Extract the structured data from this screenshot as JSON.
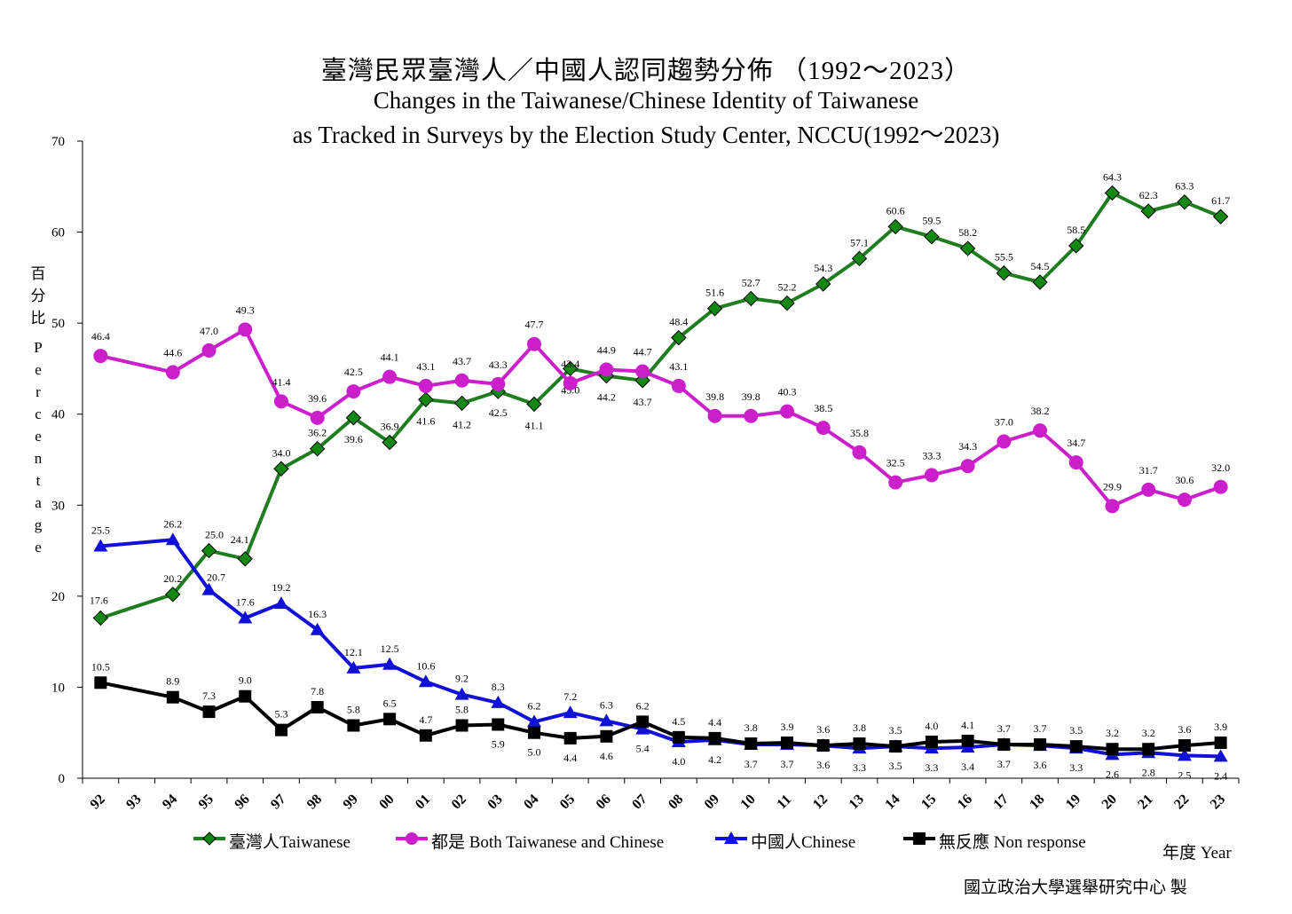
{
  "title": {
    "zh": "臺灣民眾臺灣人／中國人認同趨勢分佈 （1992～2023）",
    "en_line1": "Changes in the Taiwanese/Chinese Identity of Taiwanese",
    "en_line2": "as Tracked in Surveys by the Election Study Center, NCCU(1992～2023)"
  },
  "y_axis": {
    "label_zh": [
      "百",
      "分",
      "比"
    ],
    "label_en": [
      "P",
      "e",
      "r",
      "c",
      "e",
      "n",
      "t",
      "a",
      "g",
      "e"
    ],
    "ticks": [
      0,
      10,
      20,
      30,
      40,
      50,
      60,
      70
    ]
  },
  "x_axis": {
    "label": "年度 Year"
  },
  "credit": "國立政治大學選舉研究中心 製",
  "colors": {
    "taiwanese": "#1e7d1e",
    "taiwanese_marker": "#118811",
    "both": "#cc1fcc",
    "chinese": "#1010d8",
    "nonresponse": "#000000"
  },
  "chart_data": {
    "type": "line",
    "title": "臺灣民眾臺灣人／中國人認同趨勢分佈 （1992～2023）",
    "xlabel": "年度 Year",
    "ylabel": "百分比 Percentage",
    "ylim": [
      0,
      70
    ],
    "x": [
      "92",
      "93",
      "94",
      "95",
      "96",
      "97",
      "98",
      "99",
      "00",
      "01",
      "02",
      "03",
      "04",
      "05",
      "06",
      "07",
      "08",
      "09",
      "10",
      "11",
      "12",
      "13",
      "14",
      "15",
      "16",
      "17",
      "18",
      "19",
      "20",
      "21",
      "22",
      "23"
    ],
    "legend_position": "bottom",
    "series": [
      {
        "name": "臺灣人Taiwanese",
        "key": "taiwanese",
        "marker": "diamond",
        "values": [
          17.6,
          null,
          20.2,
          25.0,
          24.1,
          34.0,
          36.2,
          39.6,
          36.9,
          41.6,
          41.2,
          42.5,
          41.1,
          45.0,
          44.2,
          43.7,
          48.4,
          51.6,
          52.7,
          52.2,
          54.3,
          57.1,
          60.6,
          59.5,
          58.2,
          55.5,
          54.5,
          58.5,
          64.3,
          62.3,
          63.3,
          61.7
        ],
        "labels": [
          "17.6",
          "",
          "20.2",
          "25.0",
          "24.1",
          "34.0",
          "36.2",
          "39.6",
          "36.9",
          "41.6",
          "41.2",
          "42.5",
          "41.1",
          "45.0",
          "44.2",
          "43.7",
          "48.4",
          "51.6",
          "52.7",
          "52.2",
          "54.3",
          "57.1",
          "60.6",
          "59.5",
          "58.2",
          "55.5",
          "54.5",
          "58.5",
          "64.3",
          "62.3",
          "63.3",
          "61.7"
        ]
      },
      {
        "name": "都是 Both Taiwanese and Chinese",
        "key": "both",
        "marker": "circle",
        "values": [
          46.4,
          null,
          44.6,
          47.0,
          49.3,
          41.4,
          39.6,
          42.5,
          44.1,
          43.1,
          43.7,
          43.3,
          47.7,
          43.4,
          44.9,
          44.7,
          43.1,
          39.8,
          39.8,
          40.3,
          38.5,
          35.8,
          32.5,
          33.3,
          34.3,
          37.0,
          38.2,
          34.7,
          29.9,
          31.7,
          30.6,
          32.0
        ],
        "labels": [
          "46.4",
          "",
          "44.6",
          "47.0",
          "49.3",
          "41.4",
          "39.6",
          "42.5",
          "44.1",
          "43.1",
          "43.7",
          "43.3",
          "47.7",
          "43.4",
          "44.9",
          "44.7",
          "43.1",
          "39.8",
          "39.8",
          "40.3",
          "38.5",
          "35.8",
          "32.5",
          "33.3",
          "34.3",
          "37.0",
          "38.2",
          "34.7",
          "29.9",
          "31.7",
          "30.6",
          "32.0"
        ]
      },
      {
        "name": "中國人Chinese",
        "key": "chinese",
        "marker": "triangle",
        "values": [
          25.5,
          null,
          26.2,
          20.7,
          17.6,
          19.2,
          16.3,
          12.1,
          12.5,
          10.6,
          9.2,
          8.3,
          6.2,
          7.2,
          6.3,
          5.4,
          4.0,
          4.2,
          3.7,
          3.7,
          3.6,
          3.3,
          3.5,
          3.3,
          3.4,
          3.7,
          3.6,
          3.3,
          2.6,
          2.8,
          2.5,
          2.4
        ],
        "labels": [
          "25.5",
          "",
          "26.2",
          "20.7",
          "17.6",
          "19.2",
          "16.3",
          "12.1",
          "12.5",
          "10.6",
          "9.2",
          "8.3",
          "6.2",
          "7.2",
          "6.3",
          "5.4",
          "4.0",
          "4.2",
          "3.7",
          "3.7",
          "3.6",
          "3.3",
          "3.5",
          "3.3",
          "3.4",
          "3.7",
          "3.6",
          "3.3",
          "2.6",
          "2.8",
          "2.5",
          "2.4"
        ]
      },
      {
        "name": "無反應 Non response",
        "key": "nonresponse",
        "marker": "square",
        "values": [
          10.5,
          null,
          8.9,
          7.3,
          9.0,
          5.3,
          7.8,
          5.8,
          6.5,
          4.7,
          5.8,
          5.9,
          5.0,
          4.4,
          4.6,
          6.2,
          4.5,
          4.4,
          3.8,
          3.9,
          3.6,
          3.8,
          3.5,
          4.0,
          4.1,
          3.7,
          3.7,
          3.5,
          3.2,
          3.2,
          3.6,
          3.9
        ],
        "labels": [
          "10.5",
          "",
          "8.9",
          "7.3",
          "9.0",
          "5.3",
          "7.8",
          "5.8",
          "6.5",
          "4.7",
          "5.8",
          "5.9",
          "5.0",
          "4.4",
          "4.6",
          "6.2",
          "4.5",
          "4.4",
          "3.8",
          "3.9",
          "3.6",
          "3.8",
          "3.5",
          "4.0",
          "4.1",
          "3.7",
          "3.7",
          "3.5",
          "3.2",
          "3.2",
          "3.6",
          "3.9"
        ]
      }
    ]
  }
}
